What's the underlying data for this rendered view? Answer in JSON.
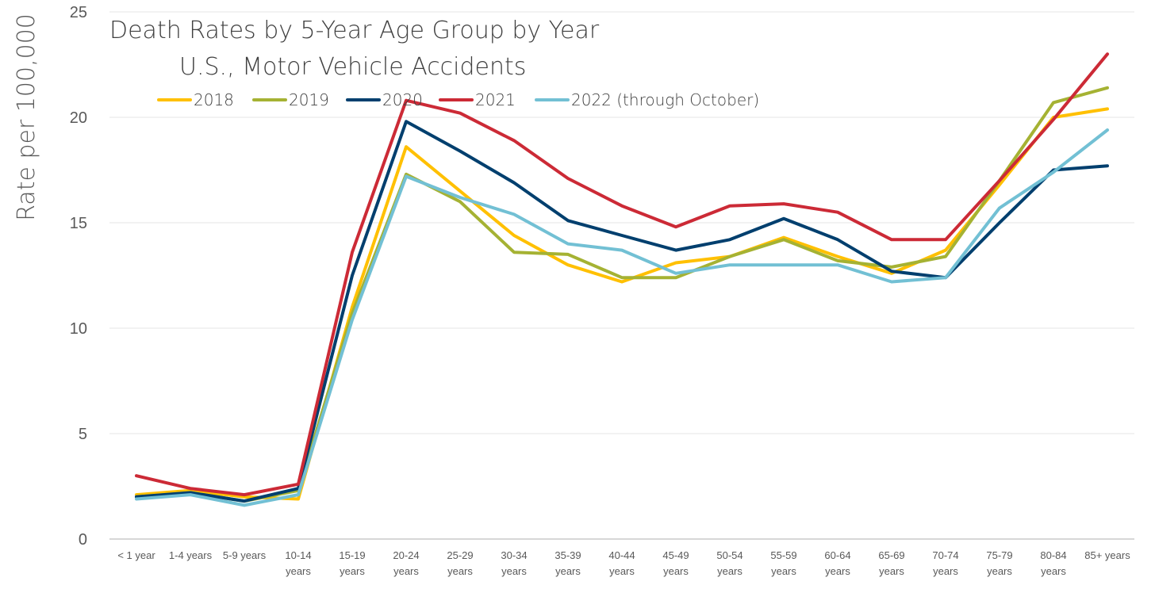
{
  "chart_data": {
    "type": "line",
    "title": [
      "Death Rates by 5-Year Age Group by Year",
      "U.S., Motor Vehicle Accidents"
    ],
    "xlabel": "",
    "ylabel": "Rate per 100,000",
    "ylim": [
      0,
      25
    ],
    "yticks": [
      0,
      5,
      10,
      15,
      20,
      25
    ],
    "grid": true,
    "legend": "top-center",
    "categories": [
      "< 1 year",
      "1-4 years",
      "5-9 years",
      "10-14 years",
      "15-19 years",
      "20-24 years",
      "25-29 years",
      "30-34 years",
      "35-39 years",
      "40-44 years",
      "45-49 years",
      "50-54 years",
      "55-59 years",
      "60-64 years",
      "65-69 years",
      "70-74 years",
      "75-79 years",
      "80-84 years",
      "85+ years"
    ],
    "series": [
      {
        "name": "2018",
        "color": "#ffc000",
        "values": [
          2.1,
          2.3,
          2.0,
          1.9,
          11.0,
          18.6,
          16.5,
          14.4,
          13.0,
          12.2,
          13.1,
          13.4,
          14.3,
          13.4,
          12.6,
          13.7,
          16.8,
          20.0,
          20.4
        ]
      },
      {
        "name": "2019",
        "color": "#a5b233",
        "values": [
          2.0,
          2.2,
          1.8,
          2.3,
          10.7,
          17.3,
          16.0,
          13.6,
          13.5,
          12.4,
          12.4,
          13.4,
          14.2,
          13.2,
          12.9,
          13.4,
          17.0,
          20.7,
          21.4
        ]
      },
      {
        "name": "2020",
        "color": "#003f6e",
        "values": [
          2.0,
          2.2,
          1.8,
          2.4,
          12.5,
          19.8,
          18.4,
          16.9,
          15.1,
          14.4,
          13.7,
          14.2,
          15.2,
          14.2,
          12.7,
          12.4,
          15.0,
          17.5,
          17.7
        ]
      },
      {
        "name": "2021",
        "color": "#cc2a36",
        "values": [
          3.0,
          2.4,
          2.1,
          2.6,
          13.6,
          20.8,
          20.2,
          18.9,
          17.1,
          15.8,
          14.8,
          15.8,
          15.9,
          15.5,
          14.2,
          14.2,
          17.0,
          19.9,
          23.0
        ]
      },
      {
        "name": "2022 (through October)",
        "color": "#72c0d4",
        "values": [
          1.9,
          2.1,
          1.6,
          2.1,
          10.4,
          17.2,
          16.2,
          15.4,
          14.0,
          13.7,
          12.6,
          13.0,
          13.0,
          13.0,
          12.2,
          12.4,
          15.7,
          17.4,
          19.4
        ]
      }
    ]
  }
}
